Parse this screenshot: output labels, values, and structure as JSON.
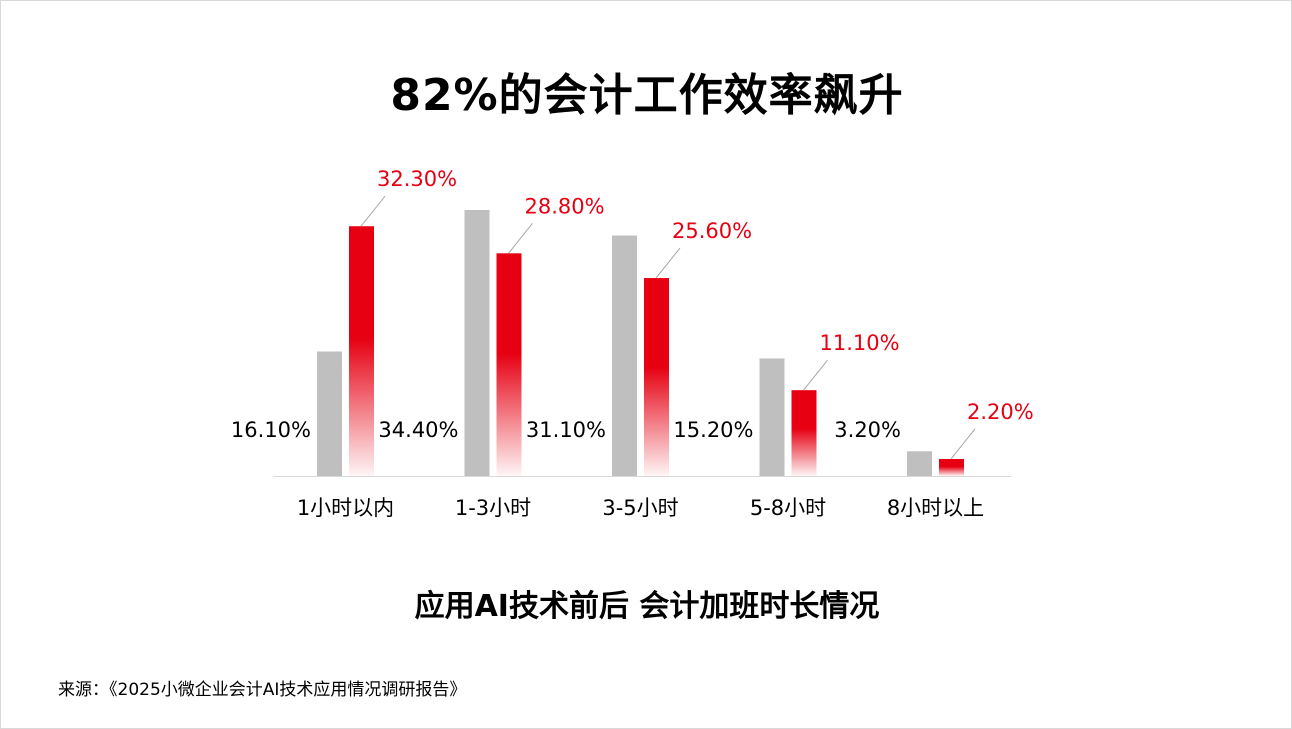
{
  "title": "82%的会计工作效率飙升",
  "subtitle": "应用AI技术前后 会计加班时长情况",
  "source": "来源：《2025小微企业会计AI技术应用情况调研报告》",
  "colors": {
    "before": "#bfbfbf",
    "after": "#e60012",
    "after_label": "#e60012",
    "before_label": "#000000",
    "axis": "#d9d9d9"
  },
  "chart_data": {
    "type": "bar",
    "categories": [
      "1小时以内",
      "1-3小时",
      "3-5小时",
      "5-8小时",
      "8小时以上"
    ],
    "series": [
      {
        "values": [
          16.1,
          34.4,
          31.1,
          15.2,
          3.2
        ],
        "labels": [
          "16.10%",
          "34.40%",
          "31.10%",
          "15.20%",
          "3.20%"
        ]
      },
      {
        "values": [
          32.3,
          28.8,
          25.6,
          11.1,
          2.2
        ],
        "labels": [
          "32.30%",
          "28.80%",
          "25.60%",
          "11.10%",
          "2.20%"
        ]
      }
    ],
    "ylim": [
      0,
      40
    ],
    "grid": false,
    "legend": "none"
  }
}
